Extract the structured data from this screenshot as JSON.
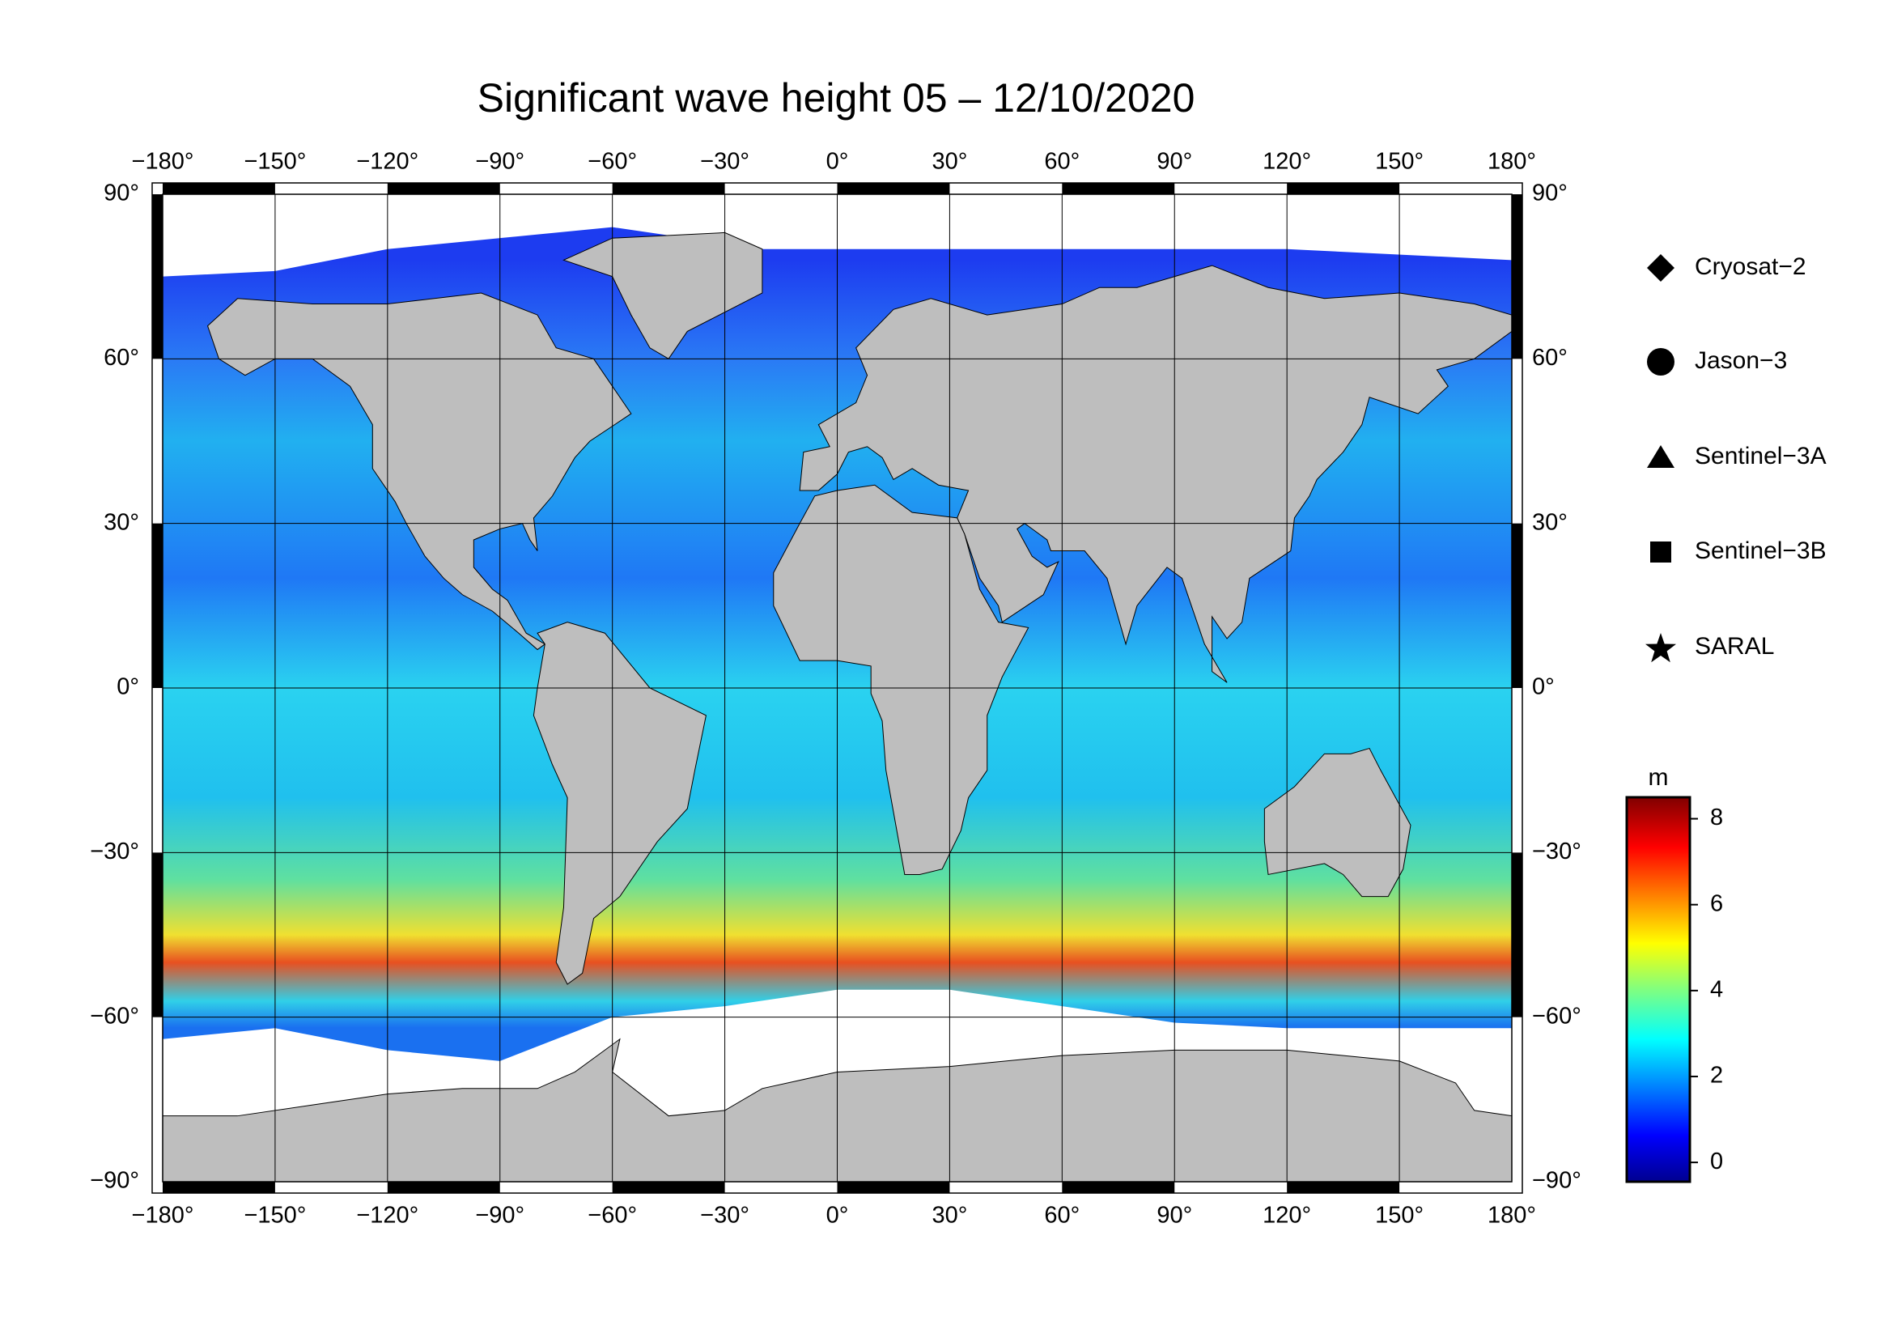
{
  "title": "Significant wave height 05 – 12/10/2020",
  "map": {
    "xlim": [
      -180,
      180
    ],
    "ylim": [
      -90,
      90
    ],
    "xticks": [
      {
        "value": -180,
        "label": "−180°"
      },
      {
        "value": -150,
        "label": "−150°"
      },
      {
        "value": -120,
        "label": "−120°"
      },
      {
        "value": -90,
        "label": "−90°"
      },
      {
        "value": -60,
        "label": "−60°"
      },
      {
        "value": -30,
        "label": "−30°"
      },
      {
        "value": 0,
        "label": "0°"
      },
      {
        "value": 30,
        "label": "30°"
      },
      {
        "value": 60,
        "label": "60°"
      },
      {
        "value": 90,
        "label": "90°"
      },
      {
        "value": 120,
        "label": "120°"
      },
      {
        "value": 150,
        "label": "150°"
      },
      {
        "value": 180,
        "label": "180°"
      }
    ],
    "yticks": [
      {
        "value": -90,
        "label": "−90°"
      },
      {
        "value": -60,
        "label": "−60°"
      },
      {
        "value": -30,
        "label": "−30°"
      },
      {
        "value": 0,
        "label": "0°"
      },
      {
        "value": 30,
        "label": "30°"
      },
      {
        "value": 60,
        "label": "60°"
      },
      {
        "value": 90,
        "label": "90°"
      }
    ],
    "grid": true
  },
  "legend": [
    "Cryosat−2",
    "Jason−3",
    "Sentinel−3A",
    "Sentinel−3B",
    "SARAL"
  ],
  "colorbar": {
    "unit": "m",
    "lim": [
      -0.45,
      8.5
    ],
    "ticks": [
      0,
      2,
      4,
      6,
      8
    ]
  }
}
